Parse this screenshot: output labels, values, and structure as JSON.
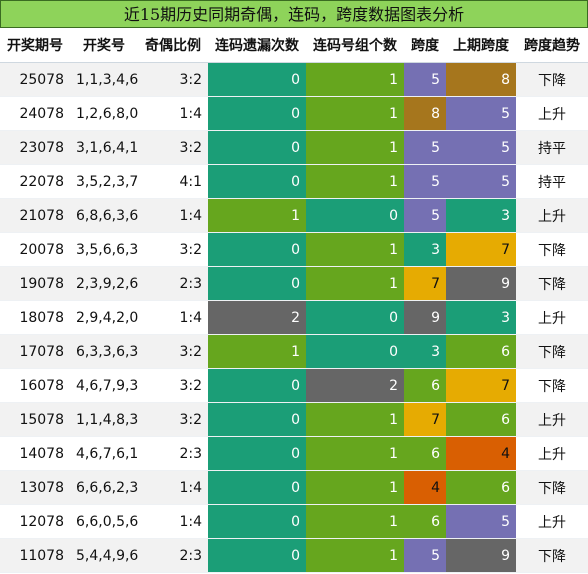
{
  "title": "近15期历史同期奇偶，连码，跨度数据图表分析",
  "headers": [
    "开奖期号",
    "开奖号",
    "奇偶比例",
    "连码遗漏次数",
    "连码号组个数",
    "跨度",
    "上期跨度",
    "跨度趋势"
  ],
  "colors": {
    "teal": "#1b9e77",
    "green": "#66a61e",
    "gray": "#666666",
    "purple": "#7570b3",
    "brown": "#a6761d",
    "gold": "#e6ab02",
    "orange": "#d95f02"
  },
  "rows": [
    {
      "issue": "25078",
      "nums": "1,1,3,4,6",
      "ratio": "3:2",
      "miss": "0",
      "groups": "1",
      "span": "5",
      "prev": "8",
      "trend": "下降"
    },
    {
      "issue": "24078",
      "nums": "1,2,6,8,0",
      "ratio": "1:4",
      "miss": "0",
      "groups": "1",
      "span": "8",
      "prev": "5",
      "trend": "上升"
    },
    {
      "issue": "23078",
      "nums": "3,1,6,4,1",
      "ratio": "3:2",
      "miss": "0",
      "groups": "1",
      "span": "5",
      "prev": "5",
      "trend": "持平"
    },
    {
      "issue": "22078",
      "nums": "3,5,2,3,7",
      "ratio": "4:1",
      "miss": "0",
      "groups": "1",
      "span": "5",
      "prev": "5",
      "trend": "持平"
    },
    {
      "issue": "21078",
      "nums": "6,8,6,3,6",
      "ratio": "1:4",
      "miss": "1",
      "groups": "0",
      "span": "5",
      "prev": "3",
      "trend": "上升"
    },
    {
      "issue": "20078",
      "nums": "3,5,6,6,3",
      "ratio": "3:2",
      "miss": "0",
      "groups": "1",
      "span": "3",
      "prev": "7",
      "trend": "下降"
    },
    {
      "issue": "19078",
      "nums": "2,3,9,2,6",
      "ratio": "2:3",
      "miss": "0",
      "groups": "1",
      "span": "7",
      "prev": "9",
      "trend": "下降"
    },
    {
      "issue": "18078",
      "nums": "2,9,4,2,0",
      "ratio": "1:4",
      "miss": "2",
      "groups": "0",
      "span": "9",
      "prev": "3",
      "trend": "上升"
    },
    {
      "issue": "17078",
      "nums": "6,3,3,6,3",
      "ratio": "3:2",
      "miss": "1",
      "groups": "0",
      "span": "3",
      "prev": "6",
      "trend": "下降"
    },
    {
      "issue": "16078",
      "nums": "4,6,7,9,3",
      "ratio": "3:2",
      "miss": "0",
      "groups": "2",
      "span": "6",
      "prev": "7",
      "trend": "下降"
    },
    {
      "issue": "15078",
      "nums": "1,1,4,8,3",
      "ratio": "3:2",
      "miss": "0",
      "groups": "1",
      "span": "7",
      "prev": "6",
      "trend": "上升"
    },
    {
      "issue": "14078",
      "nums": "4,6,7,6,1",
      "ratio": "2:3",
      "miss": "0",
      "groups": "1",
      "span": "6",
      "prev": "4",
      "trend": "上升"
    },
    {
      "issue": "13078",
      "nums": "6,6,6,2,3",
      "ratio": "1:4",
      "miss": "0",
      "groups": "1",
      "span": "4",
      "prev": "6",
      "trend": "下降"
    },
    {
      "issue": "12078",
      "nums": "6,6,0,5,6",
      "ratio": "1:4",
      "miss": "0",
      "groups": "1",
      "span": "6",
      "prev": "5",
      "trend": "上升"
    },
    {
      "issue": "11078",
      "nums": "5,4,4,9,6",
      "ratio": "2:3",
      "miss": "0",
      "groups": "1",
      "span": "5",
      "prev": "9",
      "trend": "下降"
    }
  ]
}
